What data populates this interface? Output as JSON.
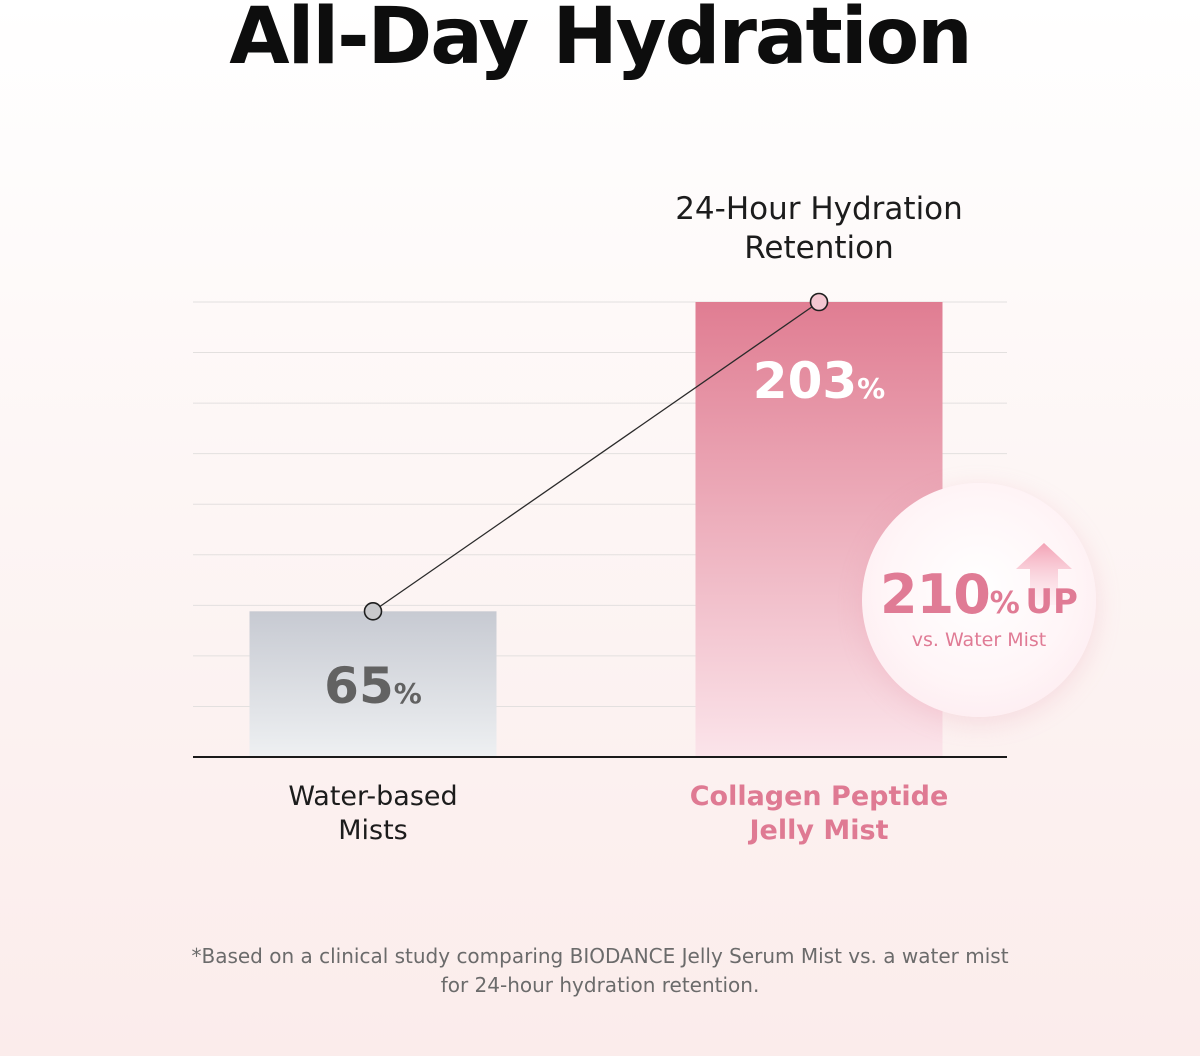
{
  "title": "All-Day Hydration",
  "chart_data": {
    "type": "bar",
    "title": "24-Hour Hydration Retention",
    "title_lines": [
      "24-Hour Hydration",
      "Retention"
    ],
    "categories": [
      "Water-based Mists",
      "Collagen Peptide Jelly Mist"
    ],
    "category_lines": [
      [
        "Water-based",
        "Mists"
      ],
      [
        "Collagen Peptide",
        "Jelly Mist"
      ]
    ],
    "values": [
      65,
      203
    ],
    "value_labels": [
      {
        "number": "65",
        "unit": "%"
      },
      {
        "number": "203",
        "unit": "%"
      }
    ],
    "unit": "%",
    "ylim": [
      0,
      203
    ],
    "grid": true,
    "connector_line": true,
    "bar_colors": [
      {
        "top": "#c7cad2",
        "bottom": "#eef0f2"
      },
      {
        "top": "#e07d92",
        "bottom": "#fbe4ea"
      }
    ],
    "value_label_colors": [
      "#626262",
      "#ffffff"
    ]
  },
  "callout": {
    "number": "210",
    "unit": "%",
    "suffix": "UP",
    "subtitle": "vs. Water Mist",
    "color": "#e07b95",
    "icon": "up-arrow-icon"
  },
  "footnote": {
    "lines": [
      "*Based on a clinical study comparing BIODANCE Jelly Serum Mist vs. a water mist",
      "for 24-hour hydration retention."
    ]
  }
}
